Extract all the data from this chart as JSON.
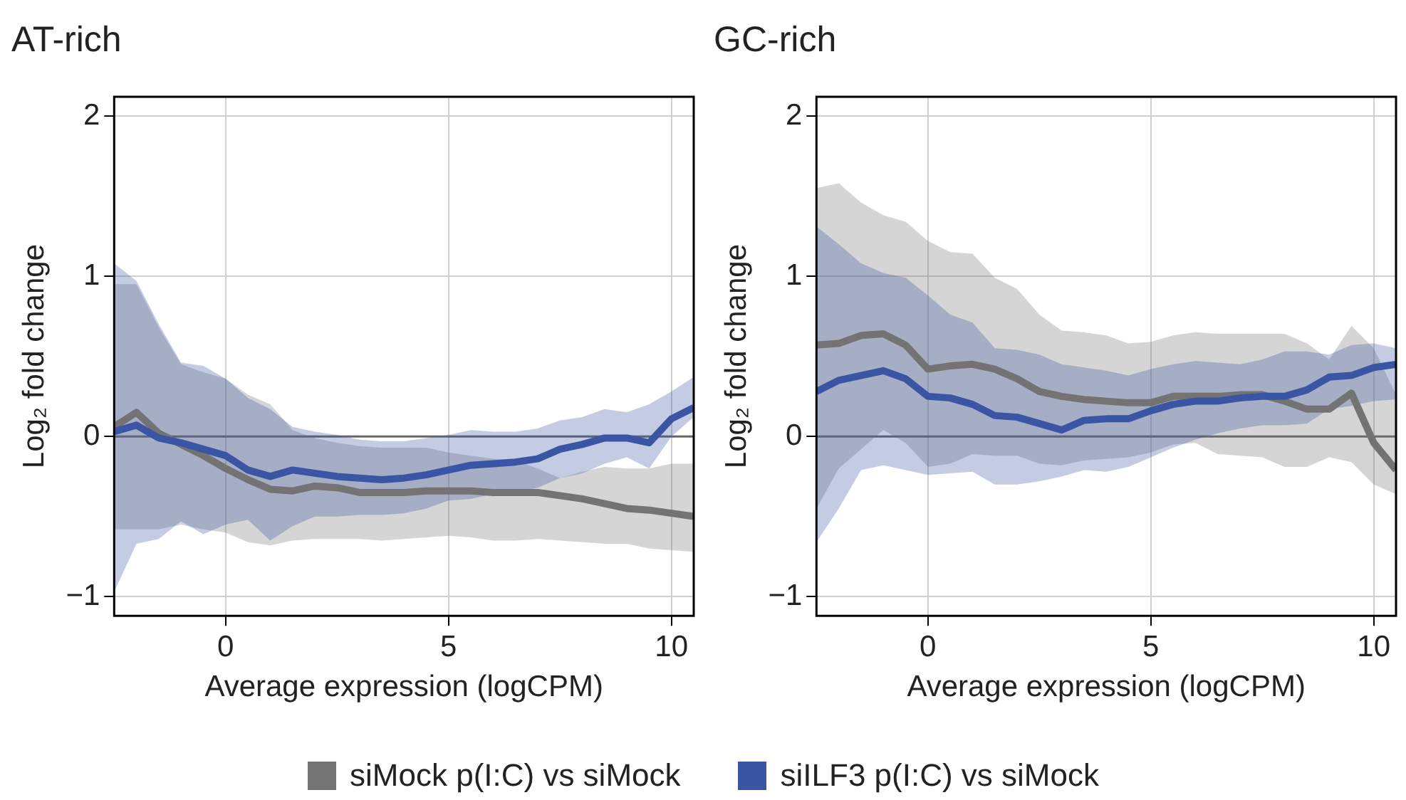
{
  "chart_data": [
    {
      "type": "line",
      "title": "AT-rich",
      "xlabel": "Average expression (logCPM)",
      "ylabel": "Log₂ fold change",
      "x": [
        -2.5,
        -2,
        -1.5,
        -1,
        -0.5,
        0,
        0.5,
        1,
        1.5,
        2,
        2.5,
        3,
        3.5,
        4,
        4.5,
        5,
        5.5,
        6,
        6.5,
        7,
        7.5,
        8,
        8.5,
        9,
        9.5,
        10,
        10.5
      ],
      "xlim": [
        -2.5,
        10.5
      ],
      "xticks": [
        0,
        5,
        10
      ],
      "ylim": [
        -1.12,
        2.12
      ],
      "yticks": [
        -1,
        0,
        1,
        2
      ],
      "grid": true,
      "legend": "bottom",
      "ref_lines": [
        {
          "axis": "y",
          "value": 0,
          "color": "#666666"
        }
      ],
      "series": [
        {
          "name": "siMock p(I:C) vs siMock",
          "color": "#737373",
          "values": [
            0.06,
            0.15,
            0.02,
            -0.05,
            -0.12,
            -0.2,
            -0.27,
            -0.33,
            -0.34,
            -0.31,
            -0.32,
            -0.35,
            -0.35,
            -0.35,
            -0.34,
            -0.34,
            -0.34,
            -0.35,
            -0.35,
            -0.35,
            -0.37,
            -0.39,
            -0.42,
            -0.45,
            -0.46,
            -0.48,
            -0.5
          ],
          "lower": [
            -0.58,
            -0.58,
            -0.58,
            -0.55,
            -0.58,
            -0.6,
            -0.66,
            -0.68,
            -0.65,
            -0.64,
            -0.64,
            -0.64,
            -0.65,
            -0.64,
            -0.63,
            -0.62,
            -0.63,
            -0.65,
            -0.65,
            -0.64,
            -0.65,
            -0.66,
            -0.67,
            -0.67,
            -0.7,
            -0.71,
            -0.72
          ],
          "upper": [
            0.95,
            0.95,
            0.68,
            0.45,
            0.4,
            0.36,
            0.26,
            0.2,
            0.04,
            -0.01,
            -0.04,
            -0.06,
            -0.07,
            -0.07,
            -0.07,
            -0.1,
            -0.12,
            -0.14,
            -0.15,
            -0.2,
            -0.26,
            -0.22,
            -0.19,
            -0.2,
            -0.2,
            -0.17,
            -0.17
          ]
        },
        {
          "name": "siILF3 p(I:C) vs siMock",
          "color": "#3a55a4",
          "values": [
            0.03,
            0.07,
            -0.01,
            -0.04,
            -0.08,
            -0.12,
            -0.21,
            -0.25,
            -0.21,
            -0.23,
            -0.25,
            -0.26,
            -0.27,
            -0.26,
            -0.24,
            -0.21,
            -0.18,
            -0.17,
            -0.16,
            -0.14,
            -0.08,
            -0.05,
            -0.01,
            -0.01,
            -0.04,
            0.11,
            0.18
          ],
          "lower": [
            -0.97,
            -0.67,
            -0.64,
            -0.53,
            -0.61,
            -0.55,
            -0.52,
            -0.65,
            -0.56,
            -0.5,
            -0.5,
            -0.49,
            -0.49,
            -0.48,
            -0.45,
            -0.4,
            -0.39,
            -0.36,
            -0.35,
            -0.32,
            -0.26,
            -0.23,
            -0.17,
            -0.13,
            -0.2,
            0,
            0.12
          ],
          "upper": [
            1.08,
            0.97,
            0.7,
            0.46,
            0.44,
            0.36,
            0.24,
            0.17,
            0.06,
            0.03,
            0.01,
            -0.02,
            -0.03,
            -0.03,
            -0.01,
            0.01,
            0.04,
            0.03,
            0.03,
            0.05,
            0.1,
            0.12,
            0.17,
            0.15,
            0.2,
            0.28,
            0.37
          ]
        }
      ]
    },
    {
      "type": "line",
      "title": "GC-rich",
      "xlabel": "Average expression (logCPM)",
      "ylabel": "Log₂ fold change",
      "x": [
        -2.5,
        -2,
        -1.5,
        -1,
        -0.5,
        0,
        0.5,
        1,
        1.5,
        2,
        2.5,
        3,
        3.5,
        4,
        4.5,
        5,
        5.5,
        6,
        6.5,
        7,
        7.5,
        8,
        8.5,
        9,
        9.5,
        10,
        10.5
      ],
      "xlim": [
        -2.5,
        10.5
      ],
      "xticks": [
        0,
        5,
        10
      ],
      "ylim": [
        -1.12,
        2.12
      ],
      "yticks": [
        -1,
        0,
        1,
        2
      ],
      "grid": true,
      "ref_lines": [
        {
          "axis": "y",
          "value": 0,
          "color": "#666666"
        }
      ],
      "series": [
        {
          "color": "#737373",
          "values": [
            0.57,
            0.58,
            0.63,
            0.64,
            0.57,
            0.42,
            0.44,
            0.45,
            0.42,
            0.36,
            0.28,
            0.25,
            0.23,
            0.22,
            0.21,
            0.21,
            0.25,
            0.25,
            0.25,
            0.26,
            0.26,
            0.22,
            0.17,
            0.17,
            0.27,
            -0.04,
            -0.21
          ],
          "lower": [
            -0.45,
            -0.2,
            -0.08,
            0.04,
            -0.04,
            -0.19,
            -0.17,
            -0.11,
            -0.12,
            -0.12,
            -0.17,
            -0.18,
            -0.15,
            -0.14,
            -0.13,
            -0.1,
            -0.05,
            -0.04,
            -0.11,
            -0.12,
            -0.13,
            -0.19,
            -0.19,
            -0.13,
            -0.16,
            -0.3,
            -0.36
          ],
          "upper": [
            1.55,
            1.58,
            1.46,
            1.38,
            1.34,
            1.22,
            1.15,
            1.14,
            0.99,
            0.92,
            0.76,
            0.66,
            0.65,
            0.63,
            0.58,
            0.59,
            0.63,
            0.65,
            0.64,
            0.64,
            0.64,
            0.64,
            0.58,
            0.48,
            0.69,
            0.55,
            0.26
          ]
        },
        {
          "color": "#3a55a4",
          "values": [
            0.28,
            0.35,
            0.38,
            0.41,
            0.36,
            0.25,
            0.24,
            0.2,
            0.13,
            0.12,
            0.08,
            0.04,
            0.1,
            0.11,
            0.11,
            0.16,
            0.2,
            0.22,
            0.22,
            0.24,
            0.25,
            0.25,
            0.29,
            0.37,
            0.38,
            0.43,
            0.45
          ],
          "lower": [
            -0.66,
            -0.45,
            -0.21,
            -0.18,
            -0.21,
            -0.24,
            -0.23,
            -0.22,
            -0.3,
            -0.3,
            -0.28,
            -0.25,
            -0.21,
            -0.22,
            -0.19,
            -0.13,
            -0.07,
            -0.02,
            0.02,
            0.05,
            0.07,
            0.07,
            0.08,
            0.17,
            0.19,
            0.22,
            0.23
          ],
          "upper": [
            1.31,
            1.2,
            1.08,
            1.02,
            0.99,
            0.88,
            0.76,
            0.71,
            0.55,
            0.54,
            0.51,
            0.45,
            0.43,
            0.41,
            0.38,
            0.42,
            0.45,
            0.47,
            0.46,
            0.45,
            0.48,
            0.53,
            0.53,
            0.51,
            0.57,
            0.58,
            0.55
          ]
        }
      ]
    }
  ]
}
